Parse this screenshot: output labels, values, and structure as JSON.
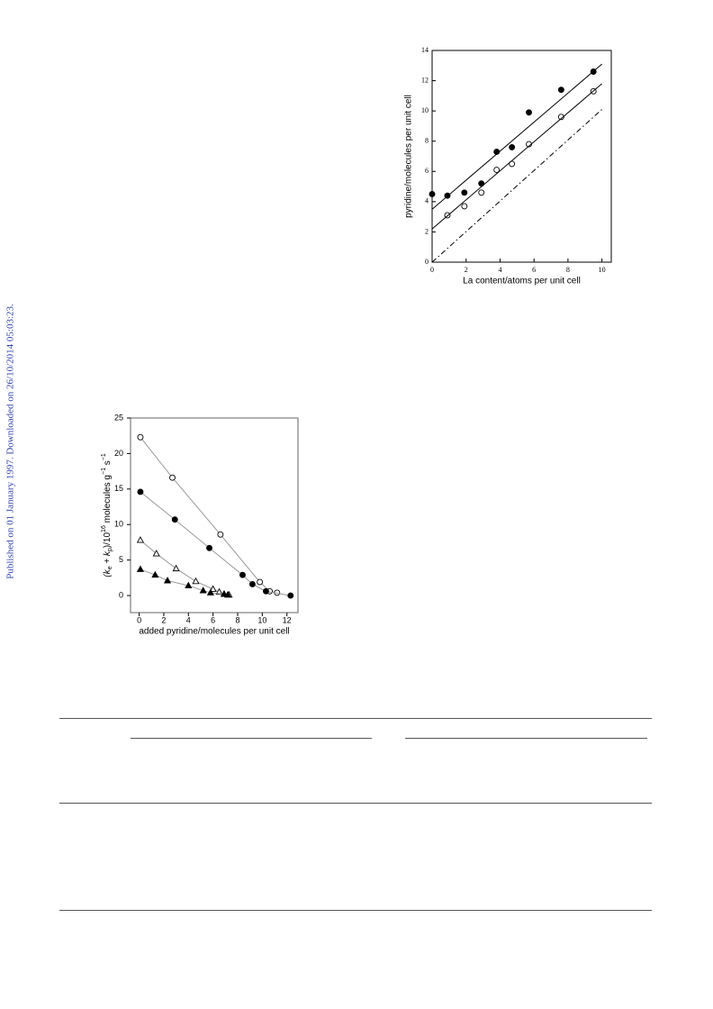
{
  "side_note": "Published on 01 January 1997. Downloaded on 26/10/2014 05:03:23.",
  "chart_data": [
    {
      "type": "scatter",
      "x_label": "La content/atoms per unit cell",
      "y_label": "pyridine/molecules per unit cell",
      "xlim": [
        0,
        10.55
      ],
      "ylim": [
        0,
        14
      ],
      "xticks": [
        0,
        2,
        4,
        6,
        8,
        10
      ],
      "yticks": [
        0,
        2,
        4,
        6,
        8,
        10,
        12,
        14
      ],
      "series": [
        {
          "marker": "filled-circle",
          "x": [
            0,
            0.9,
            1.9,
            2.9,
            3.8,
            4.7,
            5.7,
            7.6,
            9.5
          ],
          "values": [
            4.5,
            4.4,
            4.6,
            5.2,
            7.3,
            7.6,
            9.9,
            11.4,
            12.6
          ]
        },
        {
          "marker": "open-circle",
          "x": [
            0.9,
            1.9,
            2.9,
            3.8,
            4.7,
            5.7,
            7.6,
            9.5
          ],
          "values": [
            3.1,
            3.7,
            4.6,
            6.1,
            6.5,
            7.8,
            9.6,
            11.3
          ]
        },
        {
          "marker": "none",
          "line": "solid",
          "color": "#000000",
          "x": [
            0,
            10
          ],
          "values": [
            3.5,
            13.1
          ]
        },
        {
          "marker": "none",
          "line": "solid",
          "color": "#000000",
          "x": [
            0,
            10
          ],
          "values": [
            2.2,
            11.8
          ]
        },
        {
          "marker": "none",
          "line": "dash-dot",
          "color": "#000000",
          "x": [
            0,
            10
          ],
          "values": [
            0,
            10.1
          ]
        }
      ]
    },
    {
      "type": "scatter",
      "x_label": "added pyridine/molecules per unit cell",
      "y_label": [
        "(k",
        "e",
        " + k",
        "p",
        ")/10",
        "16",
        " molecules g",
        "−1",
        " s",
        "−1"
      ],
      "xlim": [
        -0.7,
        12.9
      ],
      "ylim": [
        -2.4,
        25
      ],
      "xticks": [
        0,
        2,
        4,
        6,
        8,
        10,
        12
      ],
      "yticks": [
        0,
        5,
        10,
        15,
        20,
        25
      ],
      "series": [
        {
          "marker": "open-circle",
          "line": "solid",
          "color": "#999999",
          "x": [
            0.1,
            2.7,
            6.6,
            9.8,
            10.6,
            11.2
          ],
          "values": [
            22.3,
            16.6,
            8.6,
            1.9,
            0.6,
            0.4
          ]
        },
        {
          "marker": "filled-circle",
          "line": "solid",
          "color": "#999999",
          "x": [
            0.1,
            2.9,
            5.7,
            8.4,
            9.2,
            10.3,
            12.3
          ],
          "values": [
            14.6,
            10.7,
            6.7,
            2.9,
            1.6,
            0.6,
            0
          ]
        },
        {
          "marker": "open-triangle",
          "line": "solid",
          "color": "#999999",
          "x": [
            0.1,
            1.4,
            3.0,
            4.6,
            6.0,
            6.5,
            6.9,
            7.3
          ],
          "values": [
            7.8,
            5.9,
            3.8,
            2.0,
            0.9,
            0.5,
            0.2,
            0.1
          ]
        },
        {
          "marker": "filled-triangle",
          "line": "solid",
          "color": "#999999",
          "x": [
            0.1,
            1.3,
            2.3,
            4.0,
            5.2,
            5.8,
            6.9,
            7.2
          ],
          "values": [
            3.7,
            2.9,
            2.1,
            1.4,
            0.7,
            0.4,
            0.2,
            0.1
          ]
        }
      ]
    }
  ]
}
